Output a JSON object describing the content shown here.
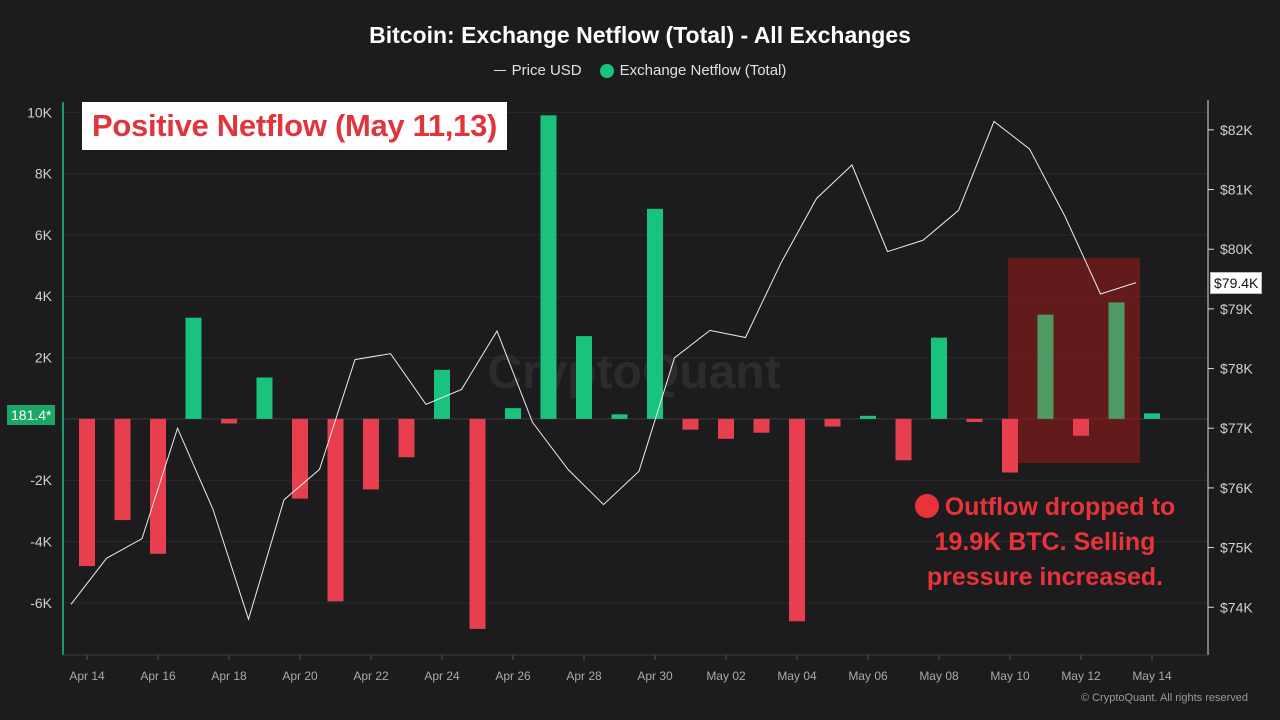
{
  "title": "Bitcoin: Exchange Netflow (Total) - All Exchanges",
  "legend": {
    "price": "Price USD",
    "netflow": "Exchange Netflow (Total)"
  },
  "badge": "Positive Netflow (May 11,13)",
  "annotation": "Outflow dropped to 19.9K BTC. Selling pressure increased.",
  "cursor_label": "181.4*",
  "price_label": "$79.4K",
  "watermark": "CryptoQuant",
  "copyright": "© CryptoQuant. All rights reserved",
  "colors": {
    "positive": "#19c37d",
    "negative": "#e83f4f",
    "price_line": "#ececec",
    "accent_red": "#e8333a",
    "highlight_box": "#8b1a1a",
    "background": "#1c1c1e"
  },
  "chart_data": {
    "type": "bar",
    "title": "Bitcoin: Exchange Netflow (Total) - All Exchanges",
    "x_tick_labels": [
      "Apr 14",
      "Apr 16",
      "Apr 18",
      "Apr 20",
      "Apr 22",
      "Apr 24",
      "Apr 26",
      "Apr 28",
      "Apr 30",
      "May 02",
      "May 04",
      "May 06",
      "May 08",
      "May 10",
      "May 12",
      "May 14"
    ],
    "categories": [
      "Apr 14",
      "Apr 15",
      "Apr 16",
      "Apr 17",
      "Apr 18",
      "Apr 19",
      "Apr 20",
      "Apr 21",
      "Apr 22",
      "Apr 23",
      "Apr 24",
      "Apr 25",
      "Apr 26",
      "Apr 27",
      "Apr 28",
      "Apr 29",
      "Apr 30",
      "May 01",
      "May 02",
      "May 03",
      "May 04",
      "May 05",
      "May 06",
      "May 07",
      "May 08",
      "May 09",
      "May 10",
      "May 11",
      "May 12",
      "May 13",
      "May 14"
    ],
    "y_left": {
      "ticks": [
        -6000,
        -4000,
        -2000,
        0,
        2000,
        4000,
        6000,
        8000,
        10000
      ],
      "tick_labels": [
        "-6K",
        "-4K",
        "-2K",
        "",
        "2K",
        "4K",
        "6K",
        "8K",
        "10K"
      ],
      "range": [
        -7700,
        10400
      ]
    },
    "y_right": {
      "ticks": [
        74000,
        75000,
        76000,
        77000,
        78000,
        79000,
        80000,
        81000,
        82000
      ],
      "tick_labels": [
        "$74K",
        "$75K",
        "$76K",
        "$77K",
        "$78K",
        "$79K",
        "$80K",
        "$81K",
        "$82K"
      ],
      "range": [
        73200,
        82500
      ]
    },
    "series": [
      {
        "name": "Exchange Netflow (Total)",
        "type": "bar",
        "axis": "left",
        "values": [
          -4800,
          -3300,
          -4400,
          3300,
          -150,
          1350,
          -2600,
          -5950,
          -2300,
          -1250,
          1600,
          -6850,
          350,
          9900,
          2700,
          150,
          6850,
          -350,
          -650,
          -450,
          -6600,
          -250,
          100,
          -1350,
          2650,
          -100,
          -1750,
          3400,
          -550,
          3800,
          181.4
        ]
      },
      {
        "name": "Price USD",
        "type": "line",
        "axis": "right",
        "values": [
          74050,
          74820,
          75150,
          77000,
          75640,
          73800,
          75800,
          76310,
          78150,
          78250,
          77400,
          77650,
          78630,
          77100,
          76310,
          75720,
          76280,
          78180,
          78640,
          78520,
          79770,
          80850,
          81410,
          79960,
          80150,
          80650,
          82140,
          81680,
          80550,
          79250,
          79440
        ]
      }
    ]
  }
}
